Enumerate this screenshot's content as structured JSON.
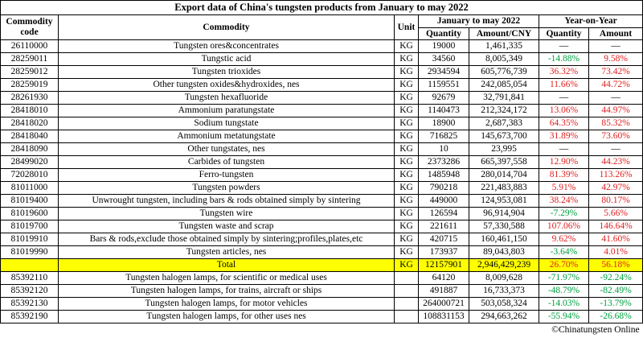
{
  "title": "Export data of China's tungsten products from January to may 2022",
  "header": {
    "code": "Commodity code",
    "commodity": "Commodity",
    "unit": "Unit",
    "period": "January to may 2022",
    "yoy": "Year-on-Year",
    "quantity": "Quantity",
    "amount_cny": "Amount/CNY",
    "yoy_quantity": "Quantity",
    "yoy_amount": "Amount"
  },
  "rows": [
    {
      "code": "26110000",
      "commodity": "Tungsten ores&concentrates",
      "unit": "KG",
      "quantity": "19000",
      "amount": "1,461,335",
      "yoy_quantity": "—",
      "yoy_amount": "—"
    },
    {
      "code": "28259011",
      "commodity": "Tungstic acid",
      "unit": "KG",
      "quantity": "34560",
      "amount": "8,005,349",
      "yoy_quantity": "-14.88%",
      "yoy_amount": "9.58%"
    },
    {
      "code": "28259012",
      "commodity": "Tungsten trioxides",
      "unit": "KG",
      "quantity": "2934594",
      "amount": "605,776,739",
      "yoy_quantity": "36.32%",
      "yoy_amount": "73.42%"
    },
    {
      "code": "28259019",
      "commodity": "Other tungsten oxides&hydroxides, nes",
      "unit": "KG",
      "quantity": "1159551",
      "amount": "242,085,054",
      "yoy_quantity": "11.66%",
      "yoy_amount": "44.72%"
    },
    {
      "code": "28261930",
      "commodity": "Tungsten hexafluoride",
      "unit": "KG",
      "quantity": "92679",
      "amount": "32,791,841",
      "yoy_quantity": "—",
      "yoy_amount": "—"
    },
    {
      "code": "28418010",
      "commodity": "Ammonium paratungstate",
      "unit": "KG",
      "quantity": "1140473",
      "amount": "212,324,172",
      "yoy_quantity": "13.06%",
      "yoy_amount": "44.97%"
    },
    {
      "code": "28418020",
      "commodity": "Sodium tungstate",
      "unit": "KG",
      "quantity": "18900",
      "amount": "2,687,383",
      "yoy_quantity": "64.35%",
      "yoy_amount": "85.32%"
    },
    {
      "code": "28418040",
      "commodity": "Ammonium metatungstate",
      "unit": "KG",
      "quantity": "716825",
      "amount": "145,673,700",
      "yoy_quantity": "31.89%",
      "yoy_amount": "73.60%"
    },
    {
      "code": "28418090",
      "commodity": "Other tungstates, nes",
      "unit": "KG",
      "quantity": "10",
      "amount": "23,995",
      "yoy_quantity": "—",
      "yoy_amount": "—"
    },
    {
      "code": "28499020",
      "commodity": "Carbides of tungsten",
      "unit": "KG",
      "quantity": "2373286",
      "amount": "665,397,558",
      "yoy_quantity": "12.90%",
      "yoy_amount": "44.23%"
    },
    {
      "code": "72028010",
      "commodity": "Ferro-tungsten",
      "unit": "KG",
      "quantity": "1485948",
      "amount": "280,014,704",
      "yoy_quantity": "81.39%",
      "yoy_amount": "113.26%"
    },
    {
      "code": "81011000",
      "commodity": "Tungsten powders",
      "unit": "KG",
      "quantity": "790218",
      "amount": "221,483,883",
      "yoy_quantity": "5.91%",
      "yoy_amount": "42.97%"
    },
    {
      "code": "81019400",
      "commodity": "Unwrought tungsten, including bars & rods obtained simply by sintering",
      "unit": "KG",
      "quantity": "449000",
      "amount": "124,953,081",
      "yoy_quantity": "38.24%",
      "yoy_amount": "80.17%"
    },
    {
      "code": "81019600",
      "commodity": "Tungsten wire",
      "unit": "KG",
      "quantity": "126594",
      "amount": "96,914,904",
      "yoy_quantity": "-7.29%",
      "yoy_amount": "5.66%"
    },
    {
      "code": "81019700",
      "commodity": "Tungsten waste and scrap",
      "unit": "KG",
      "quantity": "221611",
      "amount": "57,330,588",
      "yoy_quantity": "107.06%",
      "yoy_amount": "146.64%"
    },
    {
      "code": "81019910",
      "commodity": "Bars & rods,exclude those obtained simply by sintering;profiles,plates,etc",
      "unit": "KG",
      "quantity": "420715",
      "amount": "160,461,150",
      "yoy_quantity": "9.62%",
      "yoy_amount": "41.60%"
    },
    {
      "code": "81019990",
      "commodity": "Tungsten articles, nes",
      "unit": "KG",
      "quantity": "173937",
      "amount": "89,043,803",
      "yoy_quantity": "-3.64%",
      "yoy_amount": "4.01%"
    },
    {
      "commodity": "Total",
      "unit": "KG",
      "quantity": "12157901",
      "amount": "2,946,429,239",
      "yoy_quantity": "26.70%",
      "yoy_amount": "56.18%",
      "highlight": true
    },
    {
      "code": "85392110",
      "commodity": "Tungsten halogen lamps, for scientific or medical uses",
      "quantity": "64120",
      "amount": "8,009,628",
      "yoy_quantity": "-71.97%",
      "yoy_amount": "-92.24%"
    },
    {
      "code": "85392120",
      "commodity": "Tungsten halogen lamps, for trains, aircraft or ships",
      "quantity": "491887",
      "amount": "16,733,373",
      "yoy_quantity": "-48.79%",
      "yoy_amount": "-82.49%"
    },
    {
      "code": "85392130",
      "commodity": "Tungsten halogen lamps, for motor vehicles",
      "quantity": "264000721",
      "amount": "503,058,324",
      "yoy_quantity": "-14.03%",
      "yoy_amount": "-13.79%"
    },
    {
      "code": "85392190",
      "commodity": "Tungsten halogen lamps, for other uses nes",
      "quantity": "108831153",
      "amount": "294,663,262",
      "yoy_quantity": "-55.94%",
      "yoy_amount": "-26.68%"
    }
  ],
  "footer": "©Chinatungsten Online"
}
